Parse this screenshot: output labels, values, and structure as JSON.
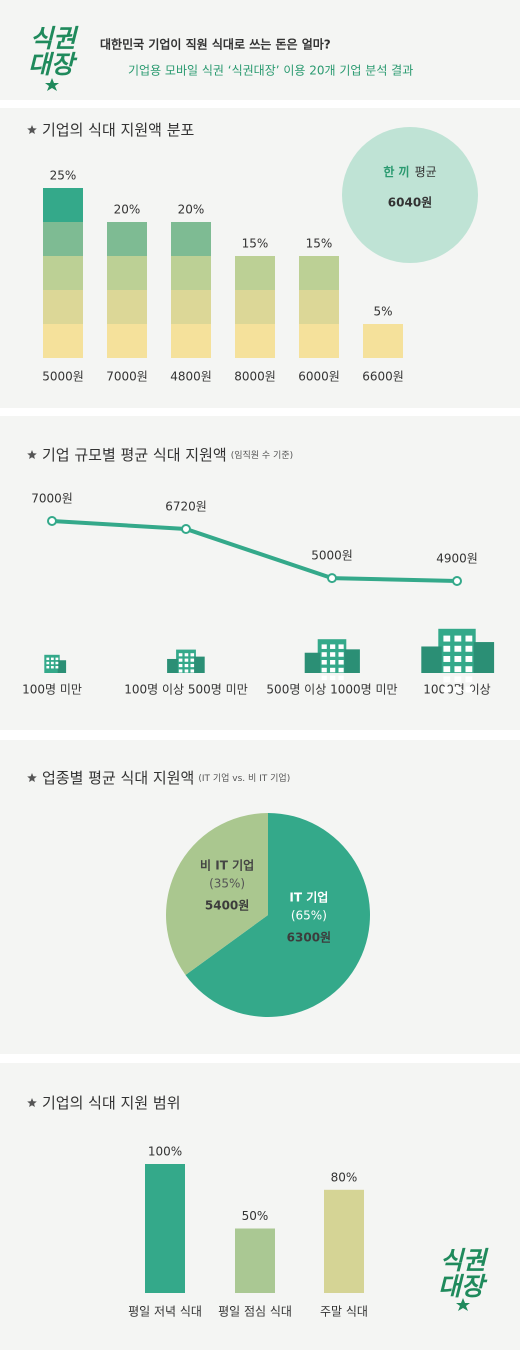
{
  "header": {
    "logo_top": "식권",
    "logo_bottom": "대장",
    "title": "대한민국 기업이 직원 식대로 쓰는 돈은 얼마?",
    "subtitle": "기업용 모바일 식권 ‘식권대장’ 이용 20개 기업 분석 결과"
  },
  "chart_data": [
    {
      "type": "bar",
      "title": "기업의 식대 지원액 분포",
      "categories": [
        "5000원",
        "7000원",
        "4800원",
        "8000원",
        "6000원",
        "6600원"
      ],
      "values": [
        25,
        20,
        20,
        15,
        15,
        5
      ],
      "value_labels": [
        "25%",
        "20%",
        "20%",
        "15%",
        "15%",
        "5%"
      ],
      "band_colors": [
        "#f5e19b",
        "#dcd797",
        "#bcd095",
        "#7ebb93",
        "#34a98a"
      ],
      "annotation": {
        "highlight": "한 끼",
        "label": "평균",
        "value": "6040원"
      }
    },
    {
      "type": "line",
      "title": "기업 규모별 평균 식대 지원액",
      "subtitle": "(임직원 수 기준)",
      "categories": [
        "100명 미만",
        "100명 이상 500명 미만",
        "500명 이상 1000명 미만",
        "1000명 이상"
      ],
      "values": [
        7000,
        6720,
        5000,
        4900
      ],
      "value_labels": [
        "7000원",
        "6720원",
        "5000원",
        "4900원"
      ],
      "color": "#34a98a"
    },
    {
      "type": "pie",
      "title": "업종별 평균 식대 지원액",
      "subtitle": "(IT 기업 vs. 비 IT 기업)",
      "categories": [
        "IT 기업",
        "비 IT 기업"
      ],
      "values": [
        65,
        35
      ],
      "value_labels": [
        "(65%)",
        "(35%)"
      ],
      "amount_labels": [
        "6300원",
        "5400원"
      ],
      "colors": [
        "#34a98a",
        "#aac78f"
      ]
    },
    {
      "type": "bar",
      "title": "기업의 식대 지원 범위",
      "categories": [
        "평일 저녁 식대",
        "평일 점심 식대",
        "주말 식대"
      ],
      "values": [
        100,
        50,
        80
      ],
      "value_labels": [
        "100%",
        "50%",
        "80%"
      ],
      "colors": [
        "#34a98a",
        "#aac893",
        "#d5d495"
      ]
    }
  ]
}
